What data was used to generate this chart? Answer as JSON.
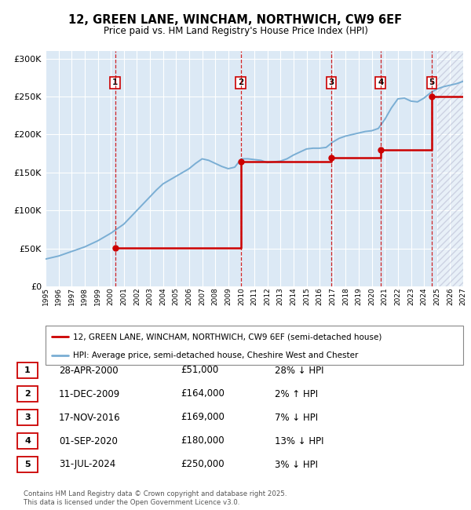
{
  "title": "12, GREEN LANE, WINCHAM, NORTHWICH, CW9 6EF",
  "subtitle": "Price paid vs. HM Land Registry's House Price Index (HPI)",
  "legend_line1": "12, GREEN LANE, WINCHAM, NORTHWICH, CW9 6EF (semi-detached house)",
  "legend_line2": "HPI: Average price, semi-detached house, Cheshire West and Chester",
  "footer": "Contains HM Land Registry data © Crown copyright and database right 2025.\nThis data is licensed under the Open Government Licence v3.0.",
  "transactions": [
    {
      "num": 1,
      "date": "28-APR-2000",
      "price": 51000,
      "hpi_diff": "28% ↓ HPI",
      "year": 2000.33
    },
    {
      "num": 2,
      "date": "11-DEC-2009",
      "price": 164000,
      "hpi_diff": "2% ↑ HPI",
      "year": 2009.95
    },
    {
      "num": 3,
      "date": "17-NOV-2016",
      "price": 169000,
      "hpi_diff": "7% ↓ HPI",
      "year": 2016.88
    },
    {
      "num": 4,
      "date": "01-SEP-2020",
      "price": 180000,
      "hpi_diff": "13% ↓ HPI",
      "year": 2020.67
    },
    {
      "num": 5,
      "date": "31-JUL-2024",
      "price": 250000,
      "hpi_diff": "3% ↓ HPI",
      "year": 2024.58
    }
  ],
  "hpi_line": {
    "x": [
      1995.0,
      1995.5,
      1996.0,
      1996.5,
      1997.0,
      1997.5,
      1998.0,
      1998.5,
      1999.0,
      1999.5,
      2000.0,
      2000.5,
      2001.0,
      2001.5,
      2002.0,
      2002.5,
      2003.0,
      2003.5,
      2004.0,
      2004.5,
      2005.0,
      2005.5,
      2006.0,
      2006.5,
      2007.0,
      2007.5,
      2008.0,
      2008.5,
      2009.0,
      2009.5,
      2010.0,
      2010.5,
      2011.0,
      2011.5,
      2012.0,
      2012.5,
      2013.0,
      2013.5,
      2014.0,
      2014.5,
      2015.0,
      2015.5,
      2016.0,
      2016.5,
      2017.0,
      2017.5,
      2018.0,
      2018.5,
      2019.0,
      2019.5,
      2020.0,
      2020.5,
      2021.0,
      2021.5,
      2022.0,
      2022.5,
      2023.0,
      2023.5,
      2024.0,
      2024.5,
      2025.0,
      2025.5,
      2026.0,
      2026.5,
      2027.0
    ],
    "y": [
      36000,
      38000,
      40000,
      43000,
      46000,
      49000,
      52000,
      56000,
      60000,
      65000,
      70000,
      76000,
      82000,
      91000,
      100000,
      109000,
      118000,
      127000,
      135000,
      140000,
      145000,
      150000,
      155000,
      162000,
      168000,
      166000,
      162000,
      158000,
      155000,
      157000,
      168000,
      168000,
      167000,
      166000,
      163000,
      164000,
      165000,
      168000,
      173000,
      177000,
      181000,
      182000,
      182000,
      183000,
      190000,
      195000,
      198000,
      200000,
      202000,
      204000,
      205000,
      208000,
      220000,
      235000,
      247000,
      248000,
      244000,
      243000,
      248000,
      255000,
      260000,
      263000,
      265000,
      267000,
      270000
    ]
  },
  "price_line_x": [
    2000.33,
    2009.95,
    2009.95,
    2016.88,
    2016.88,
    2020.67,
    2020.67,
    2024.58,
    2024.58,
    2027.0
  ],
  "price_line_y": [
    51000,
    51000,
    164000,
    164000,
    169000,
    169000,
    180000,
    180000,
    250000,
    250000
  ],
  "ylim": [
    0,
    310000
  ],
  "xlim": [
    1995,
    2027
  ],
  "yticks": [
    0,
    50000,
    100000,
    150000,
    200000,
    250000,
    300000
  ],
  "ytick_labels": [
    "£0",
    "£50K",
    "£100K",
    "£150K",
    "£200K",
    "£250K",
    "£300K"
  ],
  "xticks": [
    1995,
    1996,
    1997,
    1998,
    1999,
    2000,
    2001,
    2002,
    2003,
    2004,
    2005,
    2006,
    2007,
    2008,
    2009,
    2010,
    2011,
    2012,
    2013,
    2014,
    2015,
    2016,
    2017,
    2018,
    2019,
    2020,
    2021,
    2022,
    2023,
    2024,
    2025,
    2026,
    2027
  ],
  "bg_color": "#dce9f5",
  "red_color": "#cc0000",
  "blue_color": "#7aaed4",
  "hatch_start": 2025.0
}
